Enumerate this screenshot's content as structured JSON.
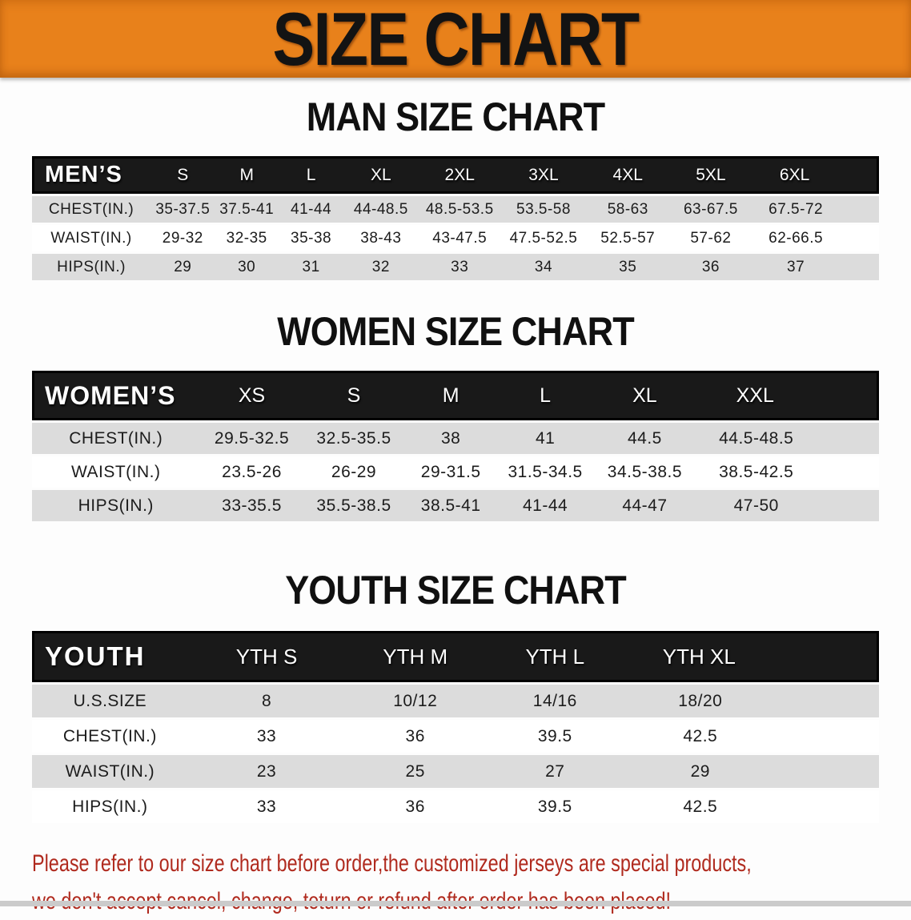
{
  "banner": {
    "title": "SIZE CHART"
  },
  "colors": {
    "banner_bg": "#e8811b",
    "header_bar_bg": "#191919",
    "header_bar_border": "#000000",
    "row_stripe_bg": "#dcdcdc",
    "note_text": "#b02a1e",
    "body_text": "#1c1c1c"
  },
  "sections": [
    {
      "heading": "MAN SIZE CHART",
      "table": {
        "header_label": "MEN’S",
        "columns": [
          "S",
          "M",
          "L",
          "XL",
          "2XL",
          "3XL",
          "4XL",
          "5XL",
          "6XL"
        ],
        "rows": [
          {
            "label": "CHEST(IN.)",
            "values": [
              "35-37.5",
              "37.5-41",
              "41-44",
              "44-48.5",
              "48.5-53.5",
              "53.5-58",
              "58-63",
              "63-67.5",
              "67.5-72"
            ]
          },
          {
            "label": "WAIST(IN.)",
            "values": [
              "29-32",
              "32-35",
              "35-38",
              "38-43",
              "43-47.5",
              "47.5-52.5",
              "52.5-57",
              "57-62",
              "62-66.5"
            ]
          },
          {
            "label": "HIPS(IN.)",
            "values": [
              "29",
              "30",
              "31",
              "32",
              "33",
              "34",
              "35",
              "36",
              "37"
            ]
          }
        ]
      }
    },
    {
      "heading": "WOMEN SIZE CHART",
      "table": {
        "header_label": "WOMEN’S",
        "columns": [
          "XS",
          "S",
          "M",
          "L",
          "XL",
          "XXL"
        ],
        "rows": [
          {
            "label": "CHEST(IN.)",
            "values": [
              "29.5-32.5",
              "32.5-35.5",
              "38",
              "41",
              "44.5",
              "44.5-48.5"
            ]
          },
          {
            "label": "WAIST(IN.)",
            "values": [
              "23.5-26",
              "26-29",
              "29-31.5",
              "31.5-34.5",
              "34.5-38.5",
              "38.5-42.5"
            ]
          },
          {
            "label": "HIPS(IN.)",
            "values": [
              "33-35.5",
              "35.5-38.5",
              "38.5-41",
              "41-44",
              "44-47",
              "47-50"
            ]
          }
        ]
      }
    },
    {
      "heading": "YOUTH SIZE CHART",
      "table": {
        "header_label": "YOUTH",
        "columns": [
          "YTH S",
          "YTH M",
          "YTH L",
          "YTH XL"
        ],
        "rows": [
          {
            "label": "U.S.SIZE",
            "values": [
              "8",
              "10/12",
              "14/16",
              "18/20"
            ]
          },
          {
            "label": "CHEST(IN.)",
            "values": [
              "33",
              "36",
              "39.5",
              "42.5"
            ]
          },
          {
            "label": "WAIST(IN.)",
            "values": [
              "23",
              "25",
              "27",
              "29"
            ]
          },
          {
            "label": "HIPS(IN.)",
            "values": [
              "33",
              "36",
              "39.5",
              "42.5"
            ]
          }
        ]
      }
    }
  ],
  "footer_note": {
    "line1": "Please refer to our size chart before order,the customized jerseys are special products,",
    "line2": "we don't accept cancel, change, teturn or refund after order has been placed!"
  }
}
